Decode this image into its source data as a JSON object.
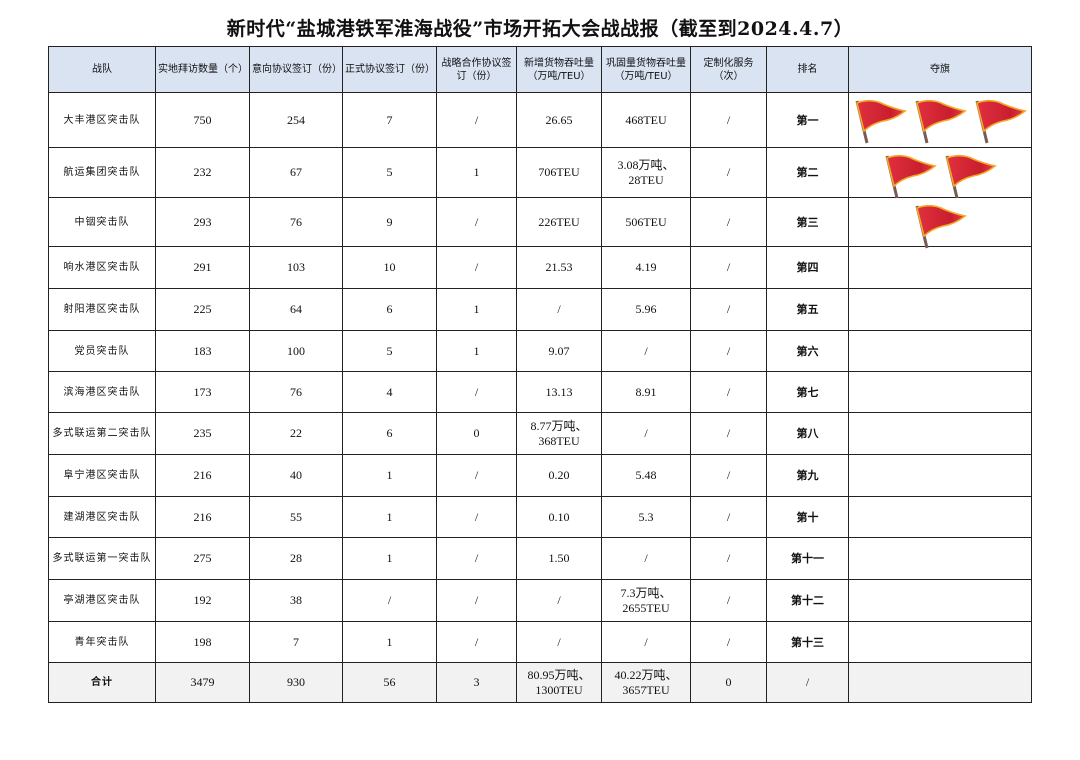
{
  "title": "新时代“盐城港铁军淮海战役”市场开拓大会战战报（截至到2024.4.7）",
  "headers": [
    "战队",
    "实地拜访数量（个）",
    "意向协议签订（份）",
    "正式协议签订（份）",
    "战略合作协议签订（份）",
    "新增货物吞吐量（万吨/TEU）",
    "巩固量货物吞吐量（万吨/TEU）",
    "定制化服务（次）",
    "排名",
    "夺旗"
  ],
  "rows": [
    {
      "team": "大丰港区突击队",
      "visits": "750",
      "intent": "254",
      "formal": "7",
      "strategic": "/",
      "new_cargo": "26.65",
      "keep_cargo": "468TEU",
      "custom": "/",
      "rank": "第一",
      "flags": 3
    },
    {
      "team": "航运集团突击队",
      "visits": "232",
      "intent": "67",
      "formal": "5",
      "strategic": "1",
      "new_cargo": "706TEU",
      "keep_cargo": "3.08万吨、28TEU",
      "custom": "/",
      "rank": "第二",
      "flags": 2
    },
    {
      "team": "中铟突击队",
      "visits": "293",
      "intent": "76",
      "formal": "9",
      "strategic": "/",
      "new_cargo": "226TEU",
      "keep_cargo": "506TEU",
      "custom": "/",
      "rank": "第三",
      "flags": 1
    },
    {
      "team": "响水港区突击队",
      "visits": "291",
      "intent": "103",
      "formal": "10",
      "strategic": "/",
      "new_cargo": "21.53",
      "keep_cargo": "4.19",
      "custom": "/",
      "rank": "第四",
      "flags": 0
    },
    {
      "team": "射阳港区突击队",
      "visits": "225",
      "intent": "64",
      "formal": "6",
      "strategic": "1",
      "new_cargo": "/",
      "keep_cargo": "5.96",
      "custom": "/",
      "rank": "第五",
      "flags": 0
    },
    {
      "team": "党员突击队",
      "visits": "183",
      "intent": "100",
      "formal": "5",
      "strategic": "1",
      "new_cargo": "9.07",
      "keep_cargo": "/",
      "custom": "/",
      "rank": "第六",
      "flags": 0
    },
    {
      "team": "滨海港区突击队",
      "visits": "173",
      "intent": "76",
      "formal": "4",
      "strategic": "/",
      "new_cargo": "13.13",
      "keep_cargo": "8.91",
      "custom": "/",
      "rank": "第七",
      "flags": 0
    },
    {
      "team": "多式联运第二突击队",
      "visits": "235",
      "intent": "22",
      "formal": "6",
      "strategic": "0",
      "new_cargo": "8.77万吨、368TEU",
      "keep_cargo": "/",
      "custom": "/",
      "rank": "第八",
      "flags": 0
    },
    {
      "team": "阜宁港区突击队",
      "visits": "216",
      "intent": "40",
      "formal": "1",
      "strategic": "/",
      "new_cargo": "0.20",
      "keep_cargo": "5.48",
      "custom": "/",
      "rank": "第九",
      "flags": 0
    },
    {
      "team": "建湖港区突击队",
      "visits": "216",
      "intent": "55",
      "formal": "1",
      "strategic": "/",
      "new_cargo": "0.10",
      "keep_cargo": "5.3",
      "custom": "/",
      "rank": "第十",
      "flags": 0
    },
    {
      "team": "多式联运第一突击队",
      "visits": "275",
      "intent": "28",
      "formal": "1",
      "strategic": "/",
      "new_cargo": "1.50",
      "keep_cargo": "/",
      "custom": "/",
      "rank": "第十一",
      "flags": 0
    },
    {
      "team": "亭湖港区突击队",
      "visits": "192",
      "intent": "38",
      "formal": "/",
      "strategic": "/",
      "new_cargo": "/",
      "keep_cargo": "7.3万吨、2655TEU",
      "custom": "/",
      "rank": "第十二",
      "flags": 0
    },
    {
      "team": "青年突击队",
      "visits": "198",
      "intent": "7",
      "formal": "1",
      "strategic": "/",
      "new_cargo": "/",
      "keep_cargo": "/",
      "custom": "/",
      "rank": "第十三",
      "flags": 0
    }
  ],
  "total": {
    "team": "合计",
    "visits": "3479",
    "intent": "930",
    "formal": "56",
    "strategic": "3",
    "new_cargo": "80.95万吨、1300TEU",
    "keep_cargo": "40.22万吨、3657TEU",
    "custom": "0",
    "rank": "/"
  },
  "colors": {
    "header_bg": "#dae3f2",
    "flag_red": "#d9263a",
    "flag_border": "#f5a623",
    "total_bg": "#f2f2f2"
  },
  "icons": {
    "flag": "red-flag-icon"
  }
}
